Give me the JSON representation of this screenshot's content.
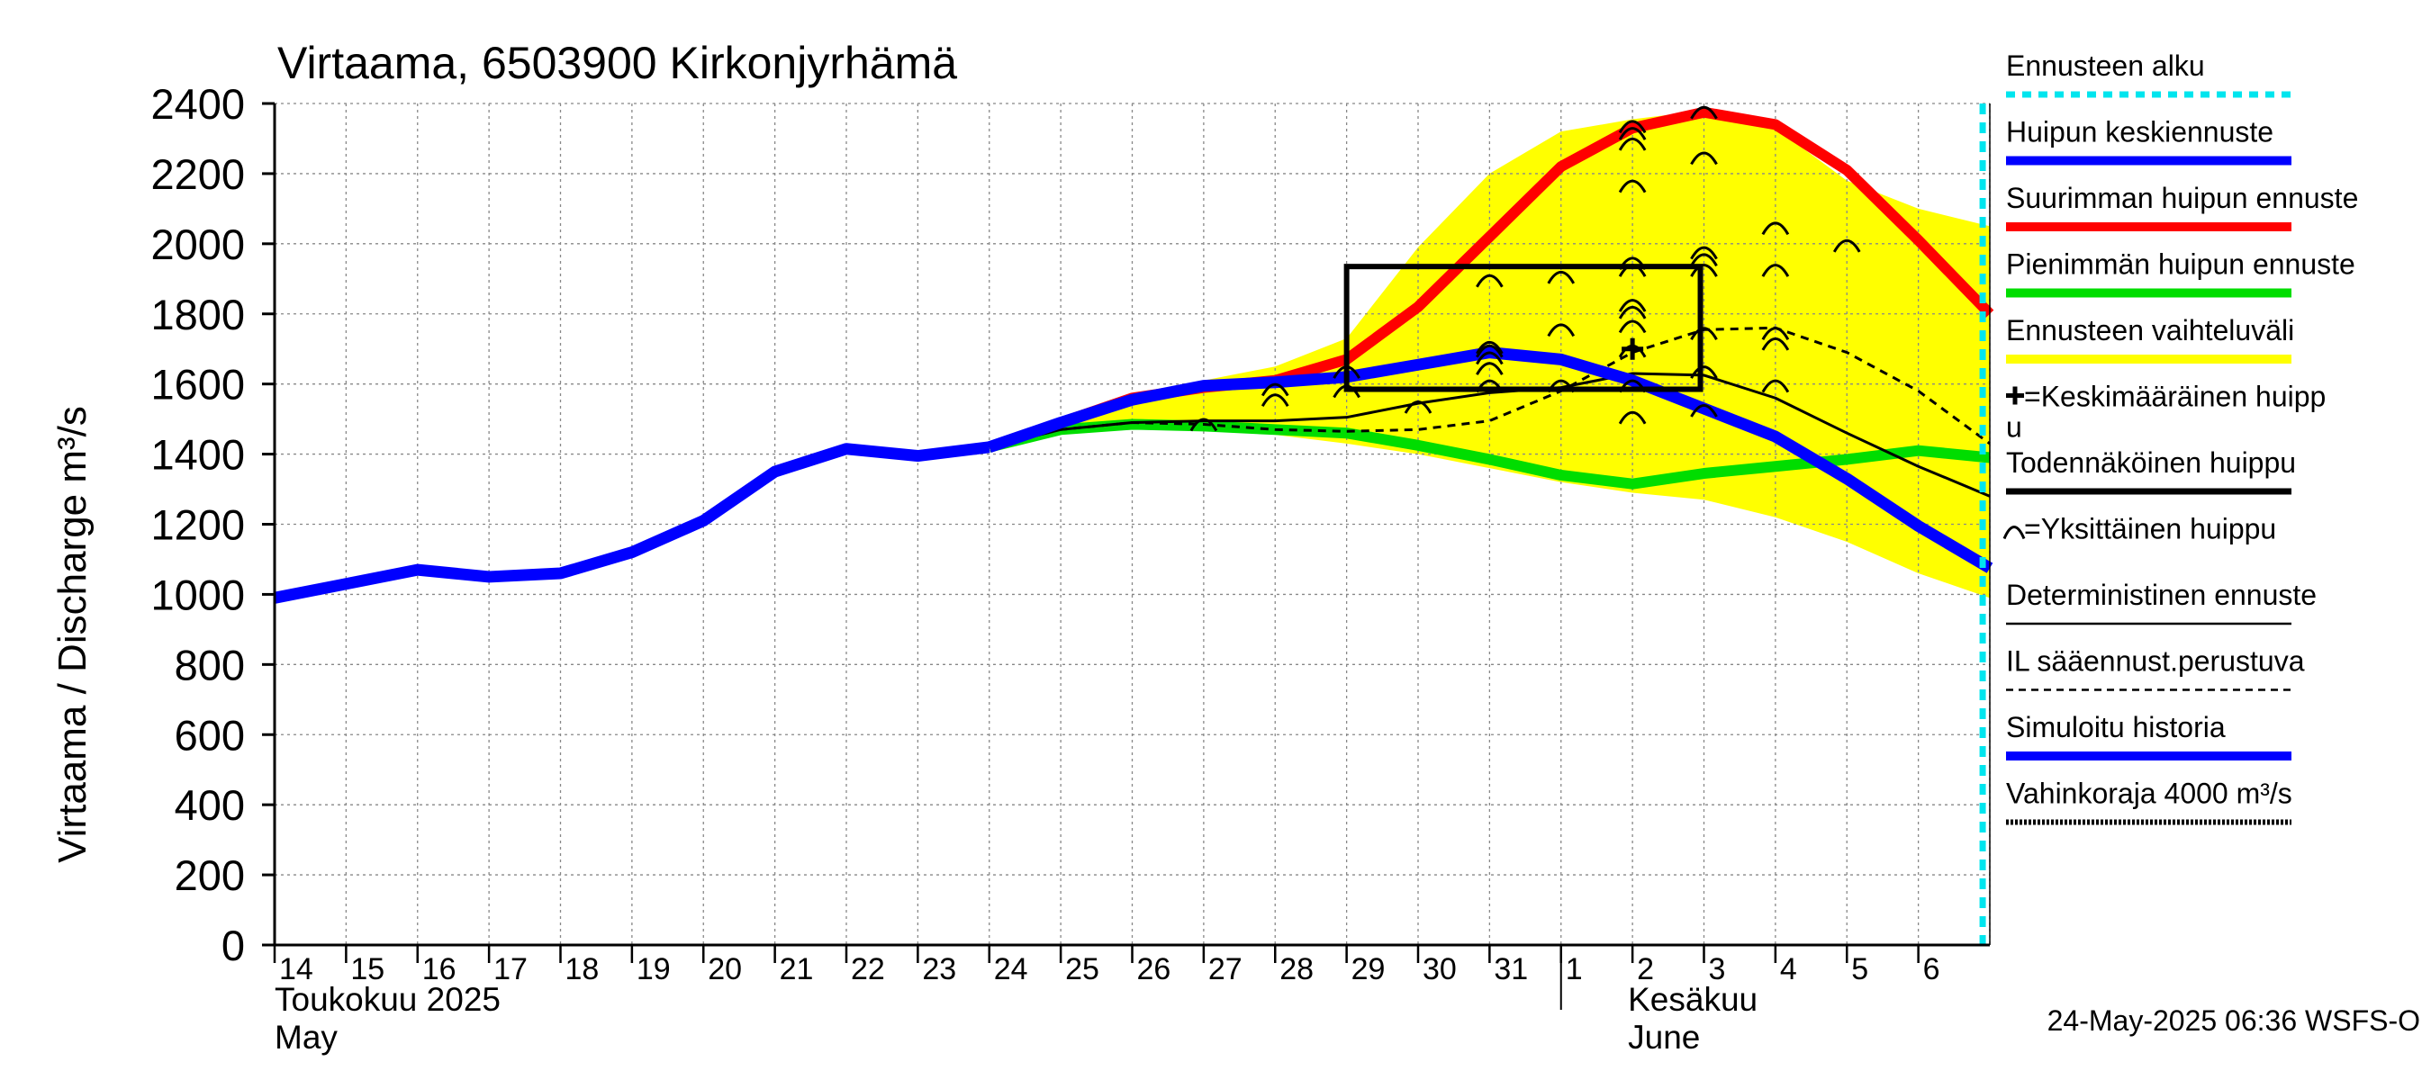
{
  "chart_data": {
    "type": "line",
    "title": "Virtaama, 6503900 Kirkonjyrhämä",
    "ylabel": "Virtaama / Discharge    m³/s",
    "ylim": [
      0,
      2400
    ],
    "yticks": [
      "0",
      "200",
      "400",
      "600",
      "800",
      "1000",
      "1200",
      "1400",
      "1600",
      "1800",
      "2000",
      "2200",
      "2400"
    ],
    "grid": true,
    "x_day_labels": [
      "14",
      "15",
      "16",
      "17",
      "18",
      "19",
      "20",
      "21",
      "22",
      "23",
      "24",
      "25",
      "26",
      "27",
      "28",
      "29",
      "30",
      "31",
      "1",
      "2",
      "3",
      "4",
      "5",
      "6"
    ],
    "month_labels": {
      "may_fi": "Toukokuu  2025",
      "may_en": "May",
      "june_fi": "Kesäkuu",
      "june_en": "June"
    },
    "forecast_start_day": 23.9,
    "series": [
      {
        "name": "Simuloitu historia",
        "color": "#0000ff",
        "x": [
          0,
          1,
          2,
          3,
          4,
          5,
          6,
          7,
          8,
          9,
          10
        ],
        "values": [
          990,
          1030,
          1070,
          1050,
          1060,
          1120,
          1210,
          1350,
          1415,
          1395,
          1420
        ]
      },
      {
        "name": "Huipun keskiennuste",
        "color": "#0000ff",
        "x": [
          10,
          11,
          12,
          13,
          14,
          15,
          16,
          17,
          18,
          19,
          20,
          21,
          22,
          23,
          24
        ],
        "values": [
          1420,
          1490,
          1555,
          1595,
          1605,
          1620,
          1655,
          1690,
          1670,
          1610,
          1530,
          1450,
          1330,
          1195,
          1075
        ]
      },
      {
        "name": "Suurimman huipun ennuste",
        "color": "#ff0000",
        "x": [
          10,
          11,
          12,
          13,
          14,
          15,
          16,
          17,
          18,
          19,
          20,
          21,
          22,
          23,
          24
        ],
        "values": [
          1420,
          1490,
          1560,
          1590,
          1610,
          1670,
          1820,
          2020,
          2220,
          2330,
          2375,
          2340,
          2210,
          2010,
          1800
        ]
      },
      {
        "name": "Pienimmän huipun ennuste",
        "color": "#00dd00",
        "x": [
          10,
          11,
          12,
          13,
          14,
          15,
          16,
          17,
          18,
          19,
          20,
          21,
          22,
          23,
          24
        ],
        "values": [
          1420,
          1470,
          1485,
          1480,
          1470,
          1460,
          1425,
          1385,
          1340,
          1315,
          1345,
          1365,
          1385,
          1410,
          1390
        ]
      },
      {
        "name": "Deterministinen ennuste",
        "color": "#000000",
        "x": [
          10,
          11,
          12,
          13,
          14,
          15,
          16,
          17,
          18,
          19,
          20,
          21,
          22,
          23,
          24
        ],
        "values": [
          1420,
          1470,
          1490,
          1495,
          1495,
          1505,
          1545,
          1575,
          1590,
          1630,
          1625,
          1560,
          1460,
          1365,
          1280
        ]
      },
      {
        "name": "IL sääennust.perustuva",
        "color": "#000000",
        "x": [
          10,
          11,
          12,
          13,
          14,
          15,
          16,
          17,
          18,
          19,
          20,
          21,
          22,
          23,
          24
        ],
        "values": [
          1420,
          1470,
          1490,
          1485,
          1470,
          1465,
          1470,
          1495,
          1580,
          1690,
          1755,
          1760,
          1690,
          1580,
          1430
        ]
      }
    ],
    "band": {
      "name": "Ennusteen vaihteluväli",
      "color": "#ffff00",
      "x": [
        10,
        11,
        12,
        13,
        14,
        15,
        16,
        17,
        18,
        19,
        20,
        21,
        22,
        23,
        24
      ],
      "upper": [
        1420,
        1500,
        1570,
        1610,
        1650,
        1730,
        1990,
        2200,
        2320,
        2355,
        2380,
        2330,
        2180,
        2100,
        2050
      ],
      "lower": [
        1420,
        1465,
        1480,
        1475,
        1455,
        1430,
        1400,
        1360,
        1320,
        1290,
        1270,
        1220,
        1150,
        1060,
        990
      ]
    },
    "probable_peak_box": {
      "x0": 15,
      "x1": 19.95,
      "y0": 1585,
      "y1": 1935
    },
    "mean_peak": {
      "x": 19,
      "y": 1700
    },
    "individual_peaks": [
      [
        13,
        1490
      ],
      [
        14,
        1560
      ],
      [
        14,
        1590
      ],
      [
        15,
        1585
      ],
      [
        15,
        1640
      ],
      [
        16,
        1540
      ],
      [
        17,
        1600
      ],
      [
        17,
        1650
      ],
      [
        17,
        1680
      ],
      [
        17,
        1700
      ],
      [
        17,
        1710
      ],
      [
        17,
        1900
      ],
      [
        18,
        1600
      ],
      [
        18,
        1760
      ],
      [
        18,
        1910
      ],
      [
        19,
        1510
      ],
      [
        19,
        1600
      ],
      [
        19,
        1700
      ],
      [
        19,
        1770
      ],
      [
        19,
        1810
      ],
      [
        19,
        1830
      ],
      [
        19,
        1930
      ],
      [
        19,
        1950
      ],
      [
        19,
        2170
      ],
      [
        19,
        2290
      ],
      [
        19,
        2320
      ],
      [
        19,
        2340
      ],
      [
        20,
        1530
      ],
      [
        20,
        1640
      ],
      [
        20,
        1750
      ],
      [
        20,
        1930
      ],
      [
        20,
        1960
      ],
      [
        20,
        1980
      ],
      [
        20,
        2250
      ],
      [
        20,
        2380
      ],
      [
        21,
        1600
      ],
      [
        21,
        1720
      ],
      [
        21,
        1750
      ],
      [
        21,
        1930
      ],
      [
        21,
        2050
      ],
      [
        22,
        2000
      ]
    ]
  },
  "legend": [
    {
      "label": "Ennusteen alku",
      "style": "dotted-cyan"
    },
    {
      "label": "Huipun keskiennuste",
      "style": "blue"
    },
    {
      "label": "Suurimman huipun ennuste",
      "style": "red"
    },
    {
      "label": "Pienimmän huipun ennuste",
      "style": "green"
    },
    {
      "label": "Ennusteen vaihteluväli",
      "style": "yellow"
    },
    {
      "label": "=Keskimääräinen huipp",
      "label2": "u",
      "style": "plus"
    },
    {
      "label": "Todennäköinen huippu",
      "style": "black-thick"
    },
    {
      "label": "=Yksittäinen huippu",
      "style": "arch"
    },
    {
      "label": "Deterministinen ennuste",
      "style": "black-thin"
    },
    {
      "label": "IL sääennust.perustuva",
      "style": "black-dashed"
    },
    {
      "label": "Simuloitu historia",
      "style": "blue"
    },
    {
      "label": "Vahinkoraja 4000 m³/s",
      "style": "black-dotted"
    }
  ],
  "footer": {
    "timestamp": "24-May-2025 06:36 WSFS-O"
  },
  "colors": {
    "forecast_start": "#00e5ee",
    "band": "#ffff00",
    "max": "#ff0000",
    "min": "#00dd00",
    "mean": "#0000ff"
  }
}
